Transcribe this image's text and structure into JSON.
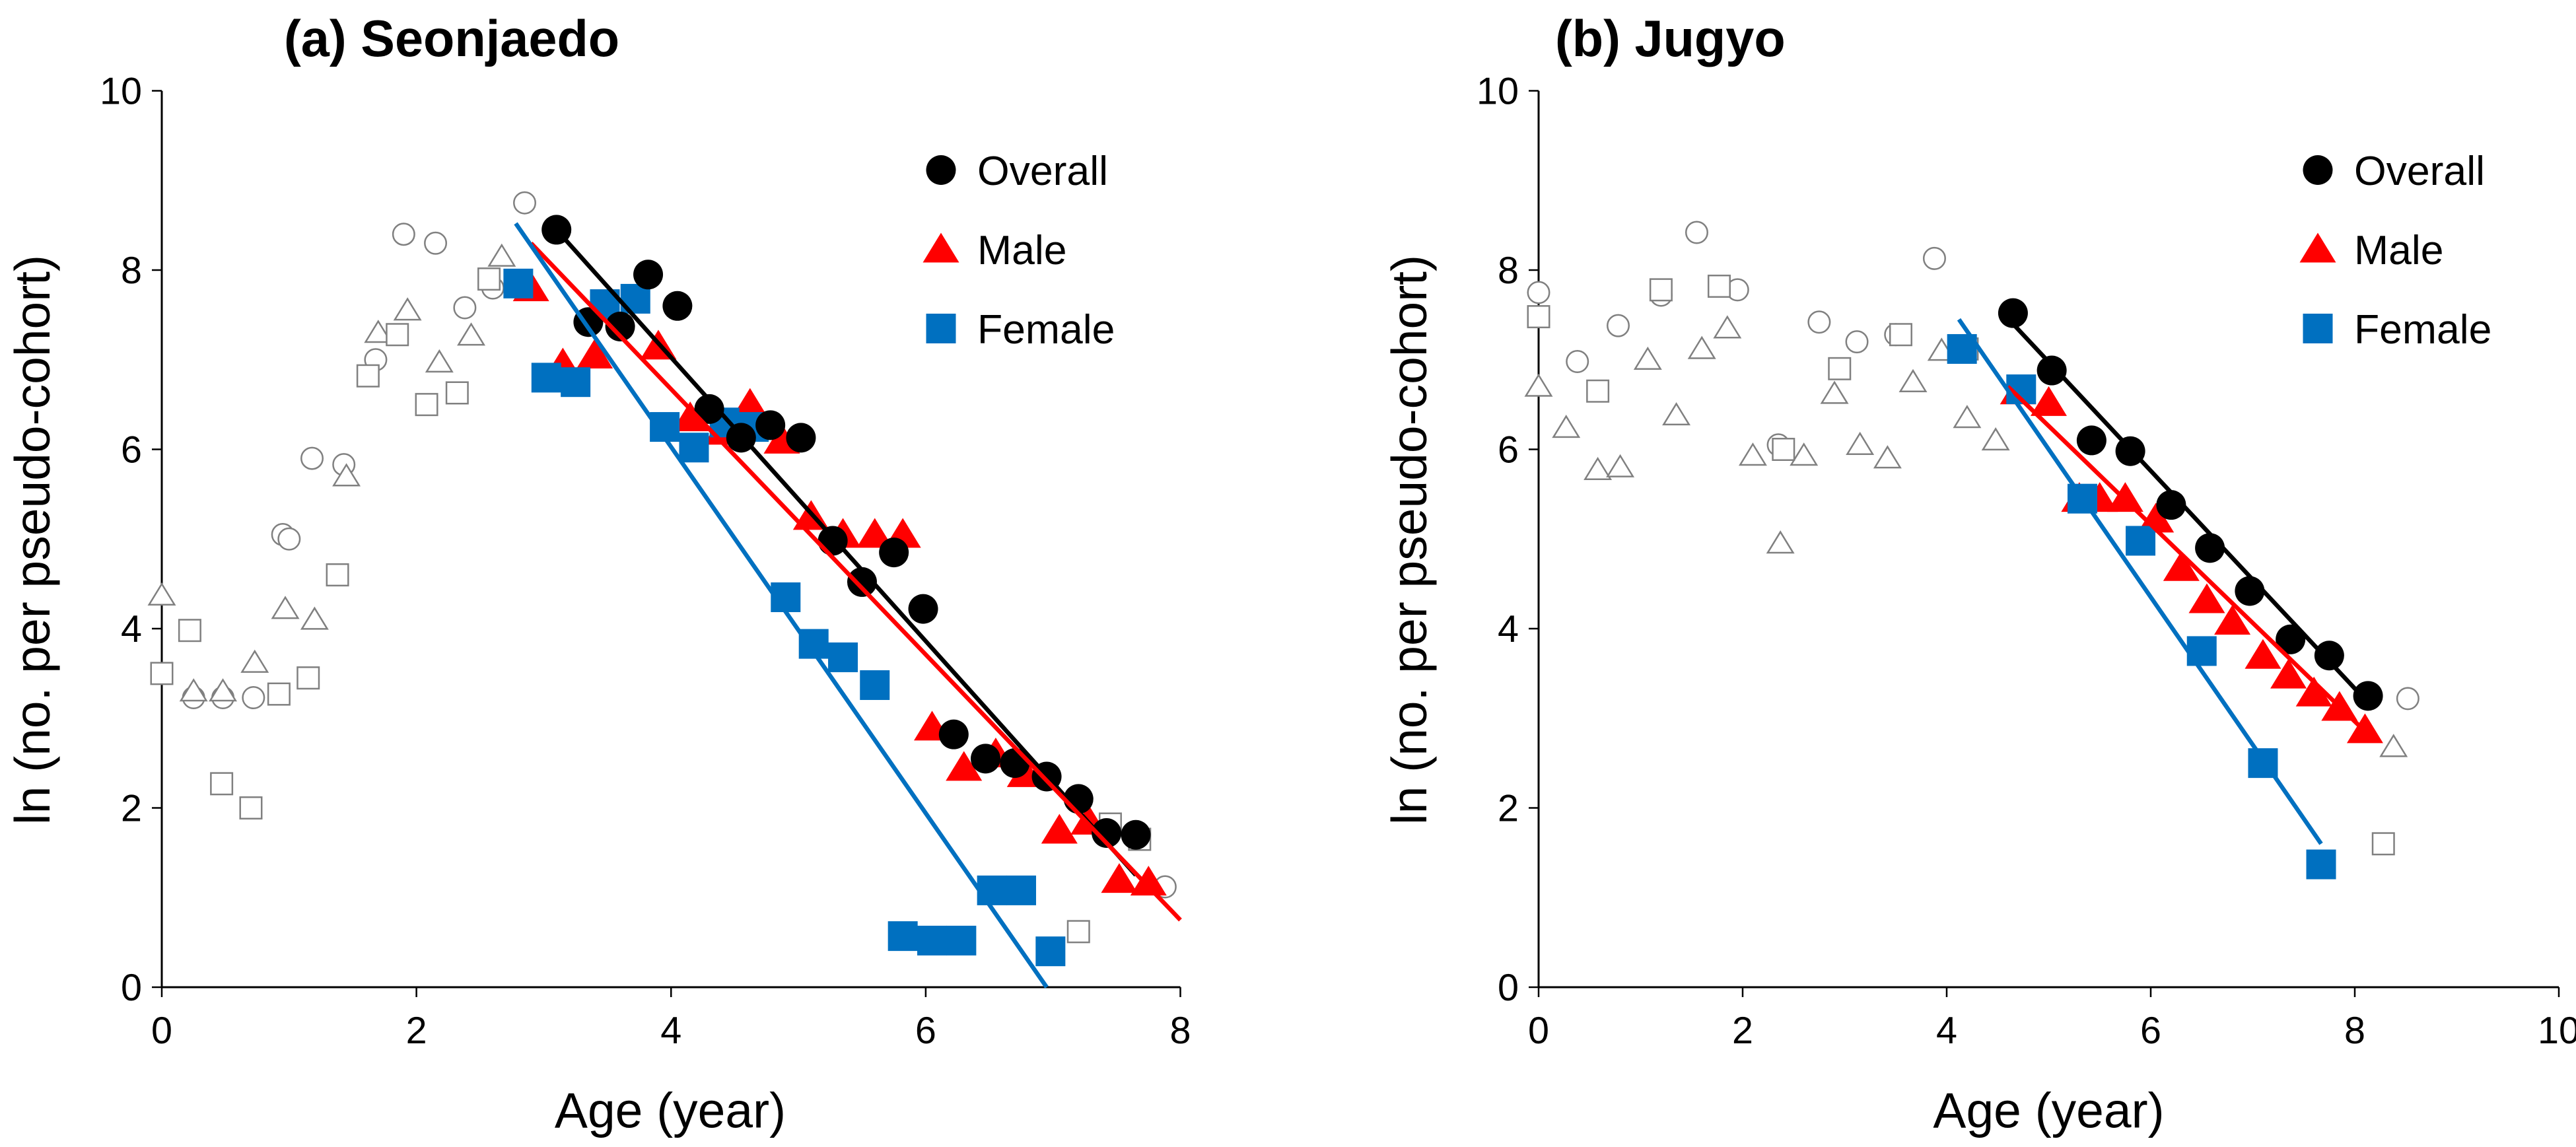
{
  "colors": {
    "overall": "#000000",
    "male": "#ff0000",
    "female": "#0070c0",
    "hollow": "#808080"
  },
  "chart_data": [
    {
      "type": "scatter",
      "title": "(a) Seonjaedo",
      "xlabel": "Age (year)",
      "ylabel": "ln (no. per pseudo-cohort)",
      "xlim": [
        0,
        8
      ],
      "ylim": [
        0,
        10
      ],
      "xticks": [
        "0",
        "2",
        "4",
        "6",
        "8"
      ],
      "yticks": [
        "0",
        "2",
        "4",
        "6",
        "8",
        "10"
      ],
      "legend": {
        "position": "top-right",
        "entries": [
          "Overall",
          "Male",
          "Female"
        ]
      },
      "series": [
        {
          "name": "Overall",
          "marker": "circle",
          "points": [
            [
              3.1,
              8.45
            ],
            [
              3.35,
              7.42
            ],
            [
              3.6,
              7.37
            ],
            [
              3.82,
              7.95
            ],
            [
              4.05,
              7.6
            ],
            [
              4.3,
              6.45
            ],
            [
              4.55,
              6.13
            ],
            [
              4.78,
              6.27
            ],
            [
              5.02,
              6.13
            ],
            [
              5.27,
              4.98
            ],
            [
              5.5,
              4.52
            ],
            [
              5.75,
              4.85
            ],
            [
              5.98,
              4.22
            ],
            [
              6.22,
              2.82
            ],
            [
              6.47,
              2.55
            ],
            [
              6.7,
              2.5
            ],
            [
              6.95,
              2.35
            ],
            [
              7.2,
              2.1
            ],
            [
              7.42,
              1.72
            ],
            [
              7.65,
              1.7
            ]
          ],
          "fit": [
            [
              3.1,
              8.45
            ],
            [
              7.65,
              1.25
            ]
          ]
        },
        {
          "name": "Male",
          "marker": "triangle",
          "points": [
            [
              2.9,
              7.8
            ],
            [
              3.15,
              6.95
            ],
            [
              3.4,
              7.05
            ],
            [
              3.9,
              7.15
            ],
            [
              4.15,
              6.35
            ],
            [
              4.4,
              6.2
            ],
            [
              4.62,
              6.5
            ],
            [
              4.87,
              6.1
            ],
            [
              5.1,
              5.25
            ],
            [
              5.35,
              5.05
            ],
            [
              5.6,
              5.05
            ],
            [
              5.82,
              5.05
            ],
            [
              6.05,
              2.9
            ],
            [
              6.3,
              2.45
            ],
            [
              6.55,
              2.6
            ],
            [
              6.78,
              2.38
            ],
            [
              7.05,
              1.75
            ],
            [
              7.28,
              1.85
            ],
            [
              7.52,
              1.2
            ],
            [
              7.75,
              1.17
            ]
          ],
          "fit": [
            [
              2.9,
              8.3
            ],
            [
              8.0,
              0.75
            ]
          ]
        },
        {
          "name": "Female",
          "marker": "square",
          "points": [
            [
              2.8,
              7.85
            ],
            [
              3.02,
              6.8
            ],
            [
              3.25,
              6.75
            ],
            [
              3.48,
              7.62
            ],
            [
              3.72,
              7.68
            ],
            [
              3.95,
              6.25
            ],
            [
              4.18,
              6.02
            ],
            [
              4.42,
              6.3
            ],
            [
              4.65,
              6.25
            ],
            [
              4.9,
              4.35
            ],
            [
              5.12,
              3.83
            ],
            [
              5.35,
              3.68
            ],
            [
              5.6,
              3.37
            ],
            [
              5.82,
              0.57
            ],
            [
              6.05,
              0.52
            ],
            [
              6.28,
              0.52
            ],
            [
              6.52,
              1.08
            ],
            [
              6.75,
              1.08
            ],
            [
              6.98,
              0.4
            ]
          ],
          "fit": [
            [
              2.78,
              8.52
            ],
            [
              6.95,
              0
            ]
          ]
        },
        {
          "name": "Overall (excluded)",
          "marker": "circle-open",
          "points": [
            [
              0.25,
              3.23
            ],
            [
              0.48,
              3.23
            ],
            [
              0.72,
              3.23
            ],
            [
              0.95,
              5.05
            ],
            [
              1.0,
              5.0
            ],
            [
              1.18,
              5.9
            ],
            [
              1.43,
              5.83
            ],
            [
              1.68,
              7.0
            ],
            [
              1.9,
              8.4
            ],
            [
              2.15,
              8.3
            ],
            [
              2.38,
              7.58
            ],
            [
              2.6,
              7.8
            ],
            [
              2.85,
              8.75
            ],
            [
              7.88,
              1.12
            ]
          ]
        },
        {
          "name": "Male (excluded)",
          "marker": "triangle-open",
          "points": [
            [
              0,
              4.37
            ],
            [
              0.25,
              3.3
            ],
            [
              0.48,
              3.3
            ],
            [
              0.73,
              3.62
            ],
            [
              0.97,
              4.22
            ],
            [
              1.2,
              4.1
            ],
            [
              1.45,
              5.7
            ],
            [
              1.7,
              7.3
            ],
            [
              1.93,
              7.55
            ],
            [
              2.18,
              6.97
            ],
            [
              2.43,
              7.27
            ],
            [
              2.67,
              8.15
            ]
          ]
        },
        {
          "name": "Female (excluded)",
          "marker": "square-open",
          "points": [
            [
              0,
              3.5
            ],
            [
              0.22,
              3.98
            ],
            [
              0.47,
              2.27
            ],
            [
              0.7,
              2.0
            ],
            [
              0.92,
              3.27
            ],
            [
              1.15,
              3.45
            ],
            [
              1.38,
              4.6
            ],
            [
              1.62,
              6.82
            ],
            [
              1.85,
              7.28
            ],
            [
              2.08,
              6.5
            ],
            [
              2.32,
              6.63
            ],
            [
              2.57,
              7.9
            ],
            [
              7.45,
              1.82
            ],
            [
              7.68,
              1.65
            ],
            [
              7.2,
              0.62
            ]
          ]
        }
      ]
    },
    {
      "type": "scatter",
      "title": "(b) Jugyo",
      "xlabel": "Age (year)",
      "ylabel": "ln (no. per pseudo-cohort)",
      "xlim": [
        0,
        10
      ],
      "ylim": [
        0,
        10
      ],
      "xticks": [
        "0",
        "2",
        "4",
        "6",
        "8",
        "10"
      ],
      "yticks": [
        "0",
        "2",
        "4",
        "6",
        "8",
        "10"
      ],
      "legend": {
        "position": "top-right",
        "entries": [
          "Overall",
          "Male",
          "Female"
        ]
      },
      "series": [
        {
          "name": "Overall",
          "marker": "circle",
          "points": [
            [
              4.65,
              7.52
            ],
            [
              5.03,
              6.88
            ],
            [
              5.42,
              6.1
            ],
            [
              5.8,
              5.98
            ],
            [
              6.2,
              5.38
            ],
            [
              6.58,
              4.9
            ],
            [
              6.97,
              4.42
            ],
            [
              7.37,
              3.88
            ],
            [
              7.75,
              3.7
            ],
            [
              8.13,
              3.25
            ]
          ],
          "fit": [
            [
              4.65,
              7.4
            ],
            [
              8.15,
              3.15
            ]
          ]
        },
        {
          "name": "Male",
          "marker": "triangle",
          "points": [
            [
              4.7,
              6.65
            ],
            [
              5.0,
              6.52
            ],
            [
              5.3,
              5.45
            ],
            [
              5.5,
              5.45
            ],
            [
              5.75,
              5.45
            ],
            [
              6.05,
              5.22
            ],
            [
              6.3,
              4.68
            ],
            [
              6.55,
              4.32
            ],
            [
              6.8,
              4.08
            ],
            [
              7.1,
              3.7
            ],
            [
              7.35,
              3.48
            ],
            [
              7.6,
              3.28
            ],
            [
              7.85,
              3.12
            ],
            [
              8.1,
              2.87
            ]
          ],
          "fit": [
            [
              4.6,
              6.7
            ],
            [
              8.15,
              2.8
            ]
          ]
        },
        {
          "name": "Female",
          "marker": "square",
          "points": [
            [
              4.15,
              7.12
            ],
            [
              4.73,
              6.67
            ],
            [
              5.33,
              5.45
            ],
            [
              5.9,
              4.98
            ],
            [
              6.5,
              3.75
            ],
            [
              7.1,
              2.5
            ],
            [
              7.67,
              1.37
            ]
          ],
          "fit": [
            [
              4.12,
              7.45
            ],
            [
              7.67,
              1.6
            ]
          ]
        },
        {
          "name": "Overall (excluded)",
          "marker": "circle-open",
          "points": [
            [
              0,
              7.75
            ],
            [
              0.38,
              6.98
            ],
            [
              0.78,
              7.38
            ],
            [
              1.2,
              7.72
            ],
            [
              1.55,
              8.42
            ],
            [
              1.95,
              7.78
            ],
            [
              2.35,
              6.05
            ],
            [
              2.75,
              7.42
            ],
            [
              3.12,
              7.2
            ],
            [
              3.5,
              7.28
            ],
            [
              3.88,
              8.13
            ],
            [
              8.52,
              3.22
            ]
          ]
        },
        {
          "name": "Male (excluded)",
          "marker": "triangle-open",
          "points": [
            [
              0,
              6.7
            ],
            [
              0.27,
              6.24
            ],
            [
              0.58,
              5.77
            ],
            [
              0.8,
              5.8
            ],
            [
              1.07,
              7.0
            ],
            [
              1.35,
              6.38
            ],
            [
              1.6,
              7.12
            ],
            [
              1.85,
              7.35
            ],
            [
              2.1,
              5.93
            ],
            [
              2.37,
              4.95
            ],
            [
              2.6,
              5.93
            ],
            [
              2.9,
              6.62
            ],
            [
              3.15,
              6.05
            ],
            [
              3.42,
              5.9
            ],
            [
              3.67,
              6.75
            ],
            [
              3.95,
              7.1
            ],
            [
              4.2,
              6.35
            ],
            [
              4.48,
              6.1
            ],
            [
              8.38,
              2.68
            ]
          ]
        },
        {
          "name": "Female (excluded)",
          "marker": "square-open",
          "points": [
            [
              0,
              7.48
            ],
            [
              0.58,
              6.65
            ],
            [
              1.2,
              7.78
            ],
            [
              1.77,
              7.82
            ],
            [
              2.4,
              6.0
            ],
            [
              2.95,
              6.9
            ],
            [
              3.55,
              7.28
            ],
            [
              4.2,
              7.12
            ],
            [
              8.28,
              1.6
            ]
          ]
        }
      ]
    }
  ]
}
